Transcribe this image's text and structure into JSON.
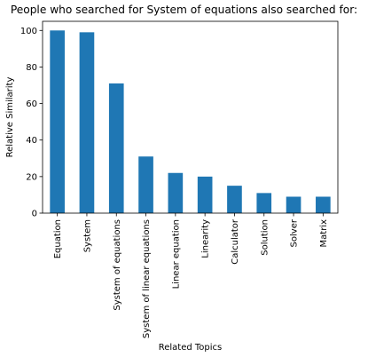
{
  "chart_data": {
    "type": "bar",
    "title": "People who searched for System of equations also searched for:",
    "xlabel": "Related Topics",
    "ylabel": "Relative Similarity",
    "categories": [
      "Equation",
      "System",
      "System of equations",
      "System of linear equations",
      "Linear equation",
      "Linearity",
      "Calculator",
      "Solution",
      "Solver",
      "Matrix"
    ],
    "values": [
      100,
      99,
      71,
      31,
      22,
      20,
      15,
      11,
      9,
      9
    ],
    "ylim": [
      0,
      105
    ],
    "yticks": [
      0,
      20,
      40,
      60,
      80,
      100
    ],
    "grid": false,
    "legend": "none",
    "bar_color": "#1f77b4"
  }
}
